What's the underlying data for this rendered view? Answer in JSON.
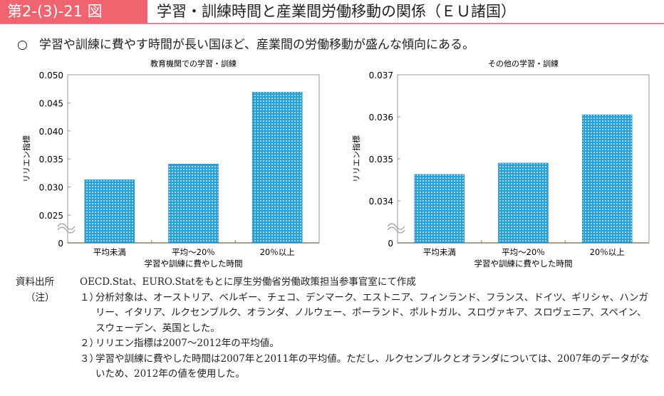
{
  "header": {
    "figure_number": "第2-(3)-21 図",
    "title": "学習・訓練時間と産業間労働移動の関係（ＥＵ諸国）"
  },
  "lead": {
    "bullet": "○",
    "text": "学習や訓練に費やす時間が長い国ほど、産業間の労働移動が盛んな傾向にある。"
  },
  "colors": {
    "bar": "#2a9fd6",
    "header": "#f06470"
  },
  "chart_data": [
    {
      "type": "bar",
      "title": "教育機関での学習・訓練",
      "xlabel": "学習や訓練に費やした時間",
      "ylabel": "リリエン指標",
      "categories": [
        "平均未満",
        "平均～20％",
        "20％以上"
      ],
      "values": [
        0.0313,
        0.0341,
        0.0469
      ],
      "ylim": [
        0.025,
        0.05
      ],
      "yticks": [
        "0.050",
        "0.045",
        "0.040",
        "0.035",
        "0.030",
        "0.025",
        "0"
      ],
      "ytick_values": [
        0.05,
        0.045,
        0.04,
        0.035,
        0.03,
        0.025
      ],
      "axis_break": true
    },
    {
      "type": "bar",
      "title": "その他の学習・訓練",
      "xlabel": "学習や訓練に費やした時間",
      "ylabel": "リリエン指標",
      "categories": [
        "平均未満",
        "平均～20％",
        "20％以上"
      ],
      "values": [
        0.03463,
        0.0349,
        0.03605
      ],
      "ylim": [
        0.034,
        0.037
      ],
      "yticks": [
        "0.037",
        "0.036",
        "0.035",
        "0.034",
        "0"
      ],
      "ytick_values": [
        0.037,
        0.036,
        0.035,
        0.034
      ],
      "axis_break": true
    }
  ],
  "source": {
    "label": "資料出所",
    "text": "OECD.Stat、EURO.Statをもとに厚生労働省労働政策担当参事官室にて作成"
  },
  "notes": {
    "label": "（注）",
    "items": [
      {
        "k": "１）",
        "t": "分析対象は、オーストリア、ベルギー、チェコ、デンマーク、エストニア、フィンランド、フランス、ドイツ、ギリシャ、ハンガリー、イタリア、ルクセンブルク、オランダ、ノルウェー、ポーランド、ポルトガル、スロヴァキア、スロヴェニア、スペイン、スウェーデン、英国とした。"
      },
      {
        "k": "２）",
        "t": "リリエン指標は2007～2012年の平均値。"
      },
      {
        "k": "３）",
        "t": "学習や訓練に費やした時間は2007年と2011年の平均値。ただし、ルクセンブルクとオランダについては、2007年のデータがないため、2012年の値を使用した。"
      }
    ]
  }
}
